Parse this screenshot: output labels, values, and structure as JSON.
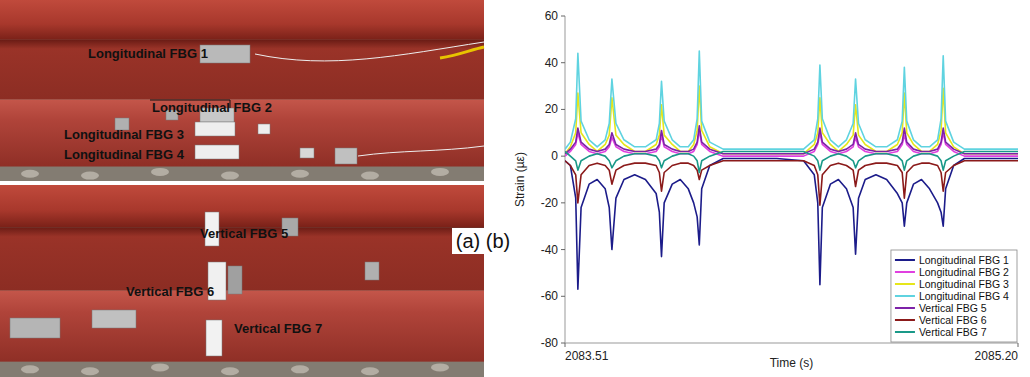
{
  "photo": {
    "panel_label": "(a)",
    "labels": [
      "Longitudinal FBG 1",
      "Longitudinal FBG 2",
      "Longitudinal FBG 3",
      "Longitudinal FBG 4",
      "Vertical FBG 5",
      "Vertical FBG 6",
      "Vertical FBG 7"
    ]
  },
  "chart_data": {
    "type": "line",
    "panel_label": "(b)",
    "x_label": "Time (s)",
    "y_label": "Strain (µε)",
    "xlim": [
      2083.51,
      2085.2
    ],
    "xticks": [
      2083.51,
      {
        "value": 2085.2,
        "label": "2085.20"
      }
    ],
    "ylim": [
      -80,
      60
    ],
    "yticks": [
      -80,
      -60,
      -40,
      -20,
      0,
      20,
      40,
      60
    ],
    "grid": false,
    "legend": "lower right",
    "x": [
      2083.51,
      2083.53,
      2083.55,
      2083.558,
      2083.57,
      2083.6,
      2083.63,
      2083.66,
      2083.675,
      2083.685,
      2083.7,
      2083.73,
      2083.77,
      2083.81,
      2083.85,
      2083.862,
      2083.87,
      2083.88,
      2083.91,
      2083.94,
      2083.97,
      2083.99,
      2084.003,
      2084.011,
      2084.02,
      2084.05,
      2084.1,
      2084.2,
      2084.3,
      2084.4,
      2084.44,
      2084.453,
      2084.461,
      2084.47,
      2084.5,
      2084.53,
      2084.56,
      2084.585,
      2084.594,
      2084.605,
      2084.63,
      2084.67,
      2084.71,
      2084.75,
      2084.768,
      2084.776,
      2084.785,
      2084.81,
      2084.84,
      2084.87,
      2084.9,
      2084.913,
      2084.921,
      2084.93,
      2084.96,
      2085.0,
      2085.1,
      2085.2
    ],
    "series": [
      {
        "name": "Longitudinal FBG 1",
        "color": "#1c1c8a",
        "values": [
          -2,
          -4,
          -18,
          -57,
          -22,
          -12,
          -10,
          -14,
          -22,
          -40,
          -18,
          -10,
          -8,
          -10,
          -16,
          -24,
          -43,
          -20,
          -12,
          -10,
          -14,
          -20,
          -26,
          -38,
          -14,
          -4,
          -1,
          -1,
          -1,
          -2,
          -8,
          -20,
          -55,
          -22,
          -12,
          -10,
          -14,
          -22,
          -42,
          -18,
          -10,
          -8,
          -10,
          -16,
          -20,
          -30,
          -20,
          -12,
          -10,
          -14,
          -20,
          -24,
          -30,
          -14,
          -4,
          -1,
          -1,
          -1
        ]
      },
      {
        "name": "Longitudinal FBG 2",
        "color": "#e040e0",
        "values": [
          0,
          2,
          5,
          10,
          5,
          2,
          1,
          2,
          4,
          8,
          4,
          2,
          1,
          1,
          2,
          4,
          9,
          4,
          2,
          1,
          1,
          2,
          5,
          11,
          5,
          2,
          0,
          0,
          0,
          0,
          2,
          5,
          10,
          5,
          2,
          1,
          2,
          4,
          8,
          4,
          2,
          1,
          1,
          2,
          5,
          9,
          5,
          2,
          1,
          1,
          2,
          5,
          10,
          5,
          2,
          0,
          0,
          0
        ]
      },
      {
        "name": "Longitudinal FBG 3",
        "color": "#e6e61a",
        "values": [
          1,
          4,
          10,
          27,
          10,
          5,
          2,
          5,
          9,
          25,
          9,
          5,
          2,
          2,
          5,
          9,
          22,
          9,
          5,
          2,
          2,
          5,
          11,
          30,
          11,
          4,
          1,
          1,
          1,
          1,
          5,
          10,
          25,
          10,
          5,
          2,
          5,
          9,
          22,
          9,
          5,
          2,
          2,
          5,
          10,
          27,
          10,
          5,
          2,
          2,
          5,
          11,
          29,
          10,
          4,
          1,
          1,
          1
        ]
      },
      {
        "name": "Longitudinal FBG 4",
        "color": "#5fd3e0",
        "values": [
          3,
          6,
          16,
          44,
          15,
          7,
          4,
          7,
          14,
          33,
          14,
          7,
          4,
          4,
          7,
          14,
          32,
          15,
          7,
          4,
          4,
          7,
          16,
          45,
          15,
          6,
          3,
          3,
          3,
          3,
          7,
          16,
          39,
          16,
          7,
          4,
          7,
          14,
          33,
          14,
          7,
          4,
          4,
          7,
          15,
          38,
          15,
          7,
          4,
          4,
          7,
          16,
          43,
          15,
          6,
          3,
          3,
          3
        ]
      },
      {
        "name": "Vertical FBG 5",
        "color": "#7d22a8",
        "values": [
          1,
          3,
          6,
          12,
          6,
          3,
          2,
          3,
          5,
          10,
          5,
          3,
          2,
          2,
          3,
          5,
          11,
          5,
          3,
          2,
          2,
          3,
          6,
          13,
          6,
          3,
          1,
          1,
          1,
          1,
          3,
          6,
          12,
          6,
          3,
          2,
          3,
          5,
          10,
          5,
          3,
          2,
          2,
          3,
          6,
          12,
          6,
          3,
          2,
          2,
          3,
          6,
          12,
          6,
          3,
          1,
          1,
          1
        ]
      },
      {
        "name": "Vertical FBG 6",
        "color": "#8b1a1a",
        "values": [
          -2,
          -4,
          -8,
          -20,
          -8,
          -4,
          -3,
          -4,
          -6,
          -12,
          -6,
          -4,
          -3,
          -3,
          -4,
          -7,
          -15,
          -7,
          -4,
          -3,
          -3,
          -4,
          -6,
          -10,
          -6,
          -4,
          -2,
          -2,
          -2,
          -2,
          -4,
          -8,
          -21,
          -8,
          -4,
          -3,
          -4,
          -6,
          -13,
          -6,
          -4,
          -3,
          -3,
          -4,
          -7,
          -18,
          -7,
          -4,
          -3,
          -3,
          -4,
          -7,
          -15,
          -7,
          -4,
          -2,
          -2,
          -2
        ]
      },
      {
        "name": "Vertical FBG 7",
        "color": "#1a9988",
        "values": [
          2,
          0,
          -2,
          -6,
          -2,
          0,
          1,
          0,
          -2,
          -5,
          -2,
          0,
          1,
          1,
          0,
          -2,
          -5,
          -2,
          0,
          1,
          1,
          0,
          -2,
          -7,
          -2,
          0,
          2,
          2,
          2,
          2,
          0,
          -2,
          -6,
          -2,
          0,
          1,
          0,
          -2,
          -5,
          -2,
          0,
          1,
          1,
          0,
          -2,
          -6,
          -2,
          0,
          1,
          1,
          0,
          -2,
          -6,
          -2,
          0,
          2,
          2,
          2
        ]
      }
    ]
  }
}
